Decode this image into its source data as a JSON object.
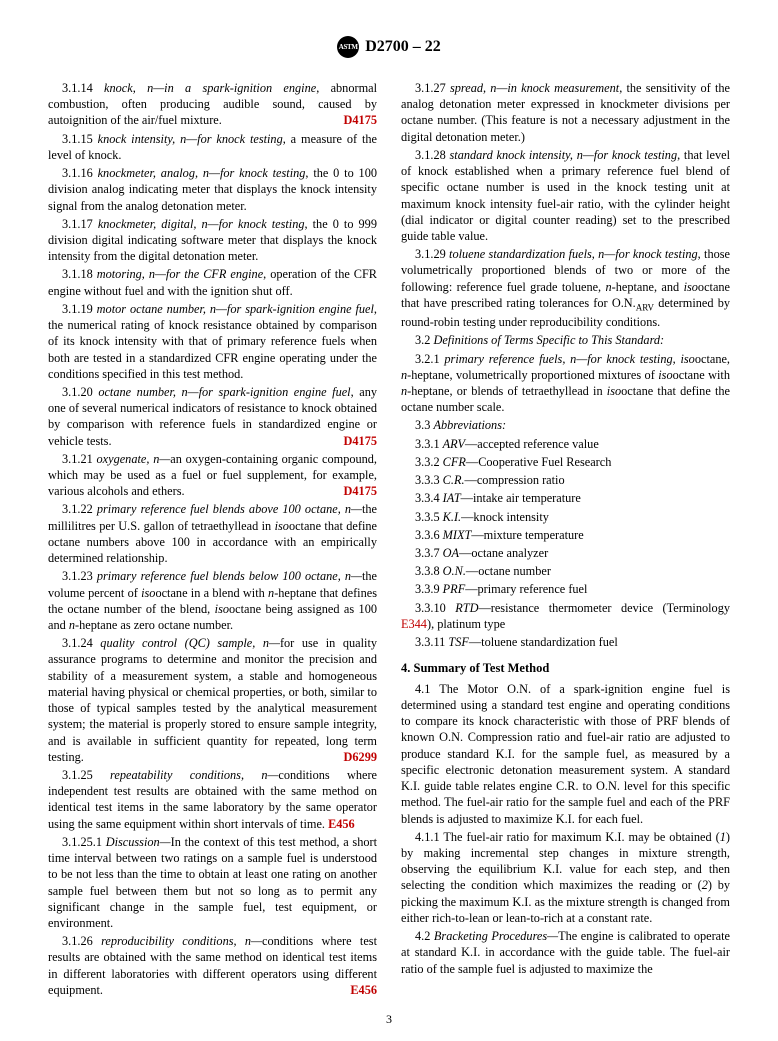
{
  "header": {
    "standard": "D2700 – 22"
  },
  "page_number": "3",
  "left": {
    "e14": {
      "num": "3.1.14",
      "term": "knock, n—in a spark-ignition engine",
      "body": ", abnormal combustion, often producing audible sound, caused by autoignition of the air/fuel mixture.",
      "ref": "D4175"
    },
    "e15": {
      "num": "3.1.15",
      "term": "knock intensity, n—for knock testing",
      "body": ", a measure of the level of knock."
    },
    "e16": {
      "num": "3.1.16",
      "term": "knockmeter, analog, n—for knock testing",
      "body": ", the 0 to 100 division analog indicating meter that displays the knock intensity signal from the analog detonation meter."
    },
    "e17": {
      "num": "3.1.17",
      "term": "knockmeter, digital, n—for knock testing",
      "body": ", the 0 to 999 division digital indicating software meter that displays the knock intensity from the digital detonation meter."
    },
    "e18": {
      "num": "3.1.18",
      "term": "motoring, n—for the CFR engine",
      "body": ", operation of the CFR engine without fuel and with the ignition shut off."
    },
    "e19": {
      "num": "3.1.19",
      "term": "motor octane number, n—for spark-ignition engine fuel",
      "body": ", the numerical rating of knock resistance obtained by comparison of its knock intensity with that of primary reference fuels when both are tested in a standardized CFR engine operating under the conditions specified in this test method."
    },
    "e20": {
      "num": "3.1.20",
      "term": "octane number, n—for spark-ignition engine fuel",
      "body": ", any one of several numerical indicators of resistance to knock obtained by comparison with reference fuels in standardized engine or vehicle tests.",
      "ref": "D4175"
    },
    "e21": {
      "num": "3.1.21",
      "term": "oxygenate, n—",
      "body": "an oxygen-containing organic compound, which may be used as a fuel or fuel supplement, for example, various alcohols and ethers.",
      "ref": "D4175"
    },
    "e22": {
      "num": "3.1.22",
      "term": "primary reference fuel blends above 100 octane, n—",
      "body_a": "the millilitres per U.S. gallon of tetraethyllead in ",
      "iso": "iso",
      "body_b": "octane that define octane numbers above 100 in accordance with an empirically determined relationship."
    },
    "e23": {
      "num": "3.1.23",
      "term": "primary reference fuel blends below 100 octane, n—",
      "body_a": "the volume percent of ",
      "iso1": "iso",
      "body_b": "octane in a blend with ",
      "nhept": "n",
      "body_c": "-heptane that defines the octane number of the blend, ",
      "iso2": "iso",
      "body_d": "octane being assigned as 100 and ",
      "nhept2": "n",
      "body_e": "-heptane as zero octane number."
    },
    "e24": {
      "num": "3.1.24",
      "term": "quality control (QC) sample, n—",
      "body": "for use in quality assurance programs to determine and monitor the precision and stability of a measurement system, a stable and homogeneous material having physical or chemical properties, or both, similar to those of typical samples tested by the analytical measurement system; the material is properly stored to ensure sample integrity, and is available in sufficient quantity for repeated, long term testing.",
      "ref": "D6299"
    },
    "e25": {
      "num": "3.1.25",
      "term": "repeatability conditions, n—",
      "body": "conditions where independent test results are obtained with the same method on identical test items in the same laboratory by the same operator using the same equipment within short intervals of time.",
      "ref": "E456"
    },
    "e25_1": {
      "num": "3.1.25.1",
      "term": "Discussion—",
      "body": "In the context of this test method, a short time interval between two ratings on a sample fuel is understood to be not less than the time to obtain at least one rating on another sample fuel between them but not so long as to permit any significant change in the sample fuel, test equipment, or environment."
    },
    "e26": {
      "num": "3.1.26",
      "term": "reproducibility conditions, n—",
      "body": "conditions where test results are obtained with the same method on identical test items in different laboratories with different operators using different equipment.",
      "ref": "E456"
    }
  },
  "right": {
    "e27": {
      "num": "3.1.27",
      "term": "spread, n—in knock measurement",
      "body": ", the sensitivity of the analog detonation meter expressed in knockmeter divisions per octane number. (This feature is not a necessary adjustment in the digital detonation meter.)"
    },
    "e28": {
      "num": "3.1.28",
      "term": "standard knock intensity, n—for knock testing",
      "body": ", that level of knock established when a primary reference fuel blend of specific octane number is used in the knock testing unit at maximum knock intensity fuel-air ratio, with the cylinder height (dial indicator or digital counter reading) set to the prescribed guide table value."
    },
    "e29": {
      "num": "3.1.29",
      "term": "toluene standardization fuels, n—for knock testing",
      "body_a": ", those volumetrically proportioned blends of two or more of the following: reference fuel grade toluene, ",
      "nhept": "n",
      "body_b": "-heptane, and ",
      "iso": "iso",
      "body_c": "octane that have prescribed rating tolerances for O.N.",
      "sub": "ARV",
      "body_d": " determined by round-robin testing under reproducibility conditions."
    },
    "s32": {
      "num": "3.2",
      "title": "Definitions of Terms Specific to This Standard:"
    },
    "e321": {
      "num": "3.2.1",
      "term": "primary reference fuels, n—for knock testing, iso",
      "body_a": "octane, ",
      "nhept": "n",
      "body_b": "-heptane, volumetrically proportioned mixtures of ",
      "iso1": "iso",
      "body_c": "octane with ",
      "nhept2": "n",
      "body_d": "-heptane, or blends of tetraethyllead in ",
      "iso2": "iso",
      "body_e": "octane that define the octane number scale."
    },
    "s33": {
      "num": "3.3",
      "title": "Abbreviations:"
    },
    "abbr": {
      "a1": {
        "num": "3.3.1",
        "t": "ARV",
        "d": "—accepted reference value"
      },
      "a2": {
        "num": "3.3.2",
        "t": "CFR",
        "d": "—Cooperative Fuel Research"
      },
      "a3": {
        "num": "3.3.3",
        "t": "C.R.",
        "d": "—compression ratio"
      },
      "a4": {
        "num": "3.3.4",
        "t": "IAT",
        "d": "—intake air temperature"
      },
      "a5": {
        "num": "3.3.5",
        "t": "K.I.",
        "d": "—knock intensity"
      },
      "a6": {
        "num": "3.3.6",
        "t": "MIXT",
        "d": "—mixture temperature"
      },
      "a7": {
        "num": "3.3.7",
        "t": "OA",
        "d": "—octane analyzer"
      },
      "a8": {
        "num": "3.3.8",
        "t": "O.N.",
        "d": "—octane number"
      },
      "a9": {
        "num": "3.3.9",
        "t": "PRF",
        "d": "—primary reference fuel"
      },
      "a10": {
        "num": "3.3.10",
        "t": "RTD",
        "d": "—resistance thermometer device (Terminology ",
        "ref": "E344",
        "d2": "), platinum type"
      },
      "a11": {
        "num": "3.3.11",
        "t": "TSF",
        "d": "—toluene standardization fuel"
      }
    },
    "sec4": {
      "title": "4. Summary of Test Method"
    },
    "p41": {
      "num": "4.1",
      "body": "The Motor O.N. of a spark-ignition engine fuel is determined using a standard test engine and operating conditions to compare its knock characteristic with those of PRF blends of known O.N. Compression ratio and fuel-air ratio are adjusted to produce standard K.I. for the sample fuel, as measured by a specific electronic detonation measurement system. A standard K.I. guide table relates engine C.R. to O.N. level for this specific method. The fuel-air ratio for the sample fuel and each of the PRF blends is adjusted to maximize K.I. for each fuel."
    },
    "p411": {
      "num": "4.1.1",
      "body_a": "The fuel-air ratio for maximum K.I. may be obtained (",
      "i1": "1",
      "body_b": ") by making incremental step changes in mixture strength, observing the equilibrium K.I. value for each step, and then selecting the condition which maximizes the reading or (",
      "i2": "2",
      "body_c": ") by picking the maximum K.I. as the mixture strength is changed from either rich-to-lean or lean-to-rich at a constant rate."
    },
    "p42": {
      "num": "4.2",
      "term": "Bracketing Procedures—",
      "body": "The engine is calibrated to operate at standard K.I. in accordance with the guide table. The fuel-air ratio of the sample fuel is adjusted to maximize the"
    }
  }
}
